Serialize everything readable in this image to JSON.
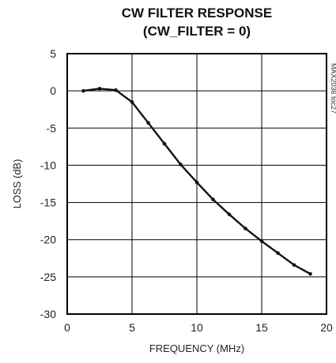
{
  "chart_data": {
    "type": "line",
    "title": "CW FILTER RESPONSE",
    "subtitle": "(CW_FILTER = 0)",
    "xlabel": "FREQUENCY (MHz)",
    "ylabel": "LOSS (dB)",
    "xlim": [
      0,
      20
    ],
    "ylim": [
      -30,
      5
    ],
    "x_ticks": [
      "0",
      "5",
      "10",
      "15",
      "20"
    ],
    "y_ticks": [
      "5",
      "0",
      "-5",
      "-10",
      "-15",
      "-20",
      "-25",
      "-30"
    ],
    "grid": true,
    "side_label": "MAX2036 toc27",
    "series": [
      {
        "x": [
          1.25,
          2.5,
          3.75,
          5.0,
          6.25,
          7.5,
          8.75,
          10.0,
          11.25,
          12.5,
          13.75,
          15.0,
          16.25,
          17.5,
          18.75
        ],
        "y": [
          0.0,
          0.3,
          0.1,
          -1.5,
          -4.3,
          -7.1,
          -9.9,
          -12.3,
          -14.6,
          -16.6,
          -18.5,
          -20.2,
          -21.8,
          -23.4,
          -24.6
        ]
      }
    ],
    "colors": {
      "line": "#111111",
      "grid": "#000000",
      "frame": "#000000"
    }
  }
}
